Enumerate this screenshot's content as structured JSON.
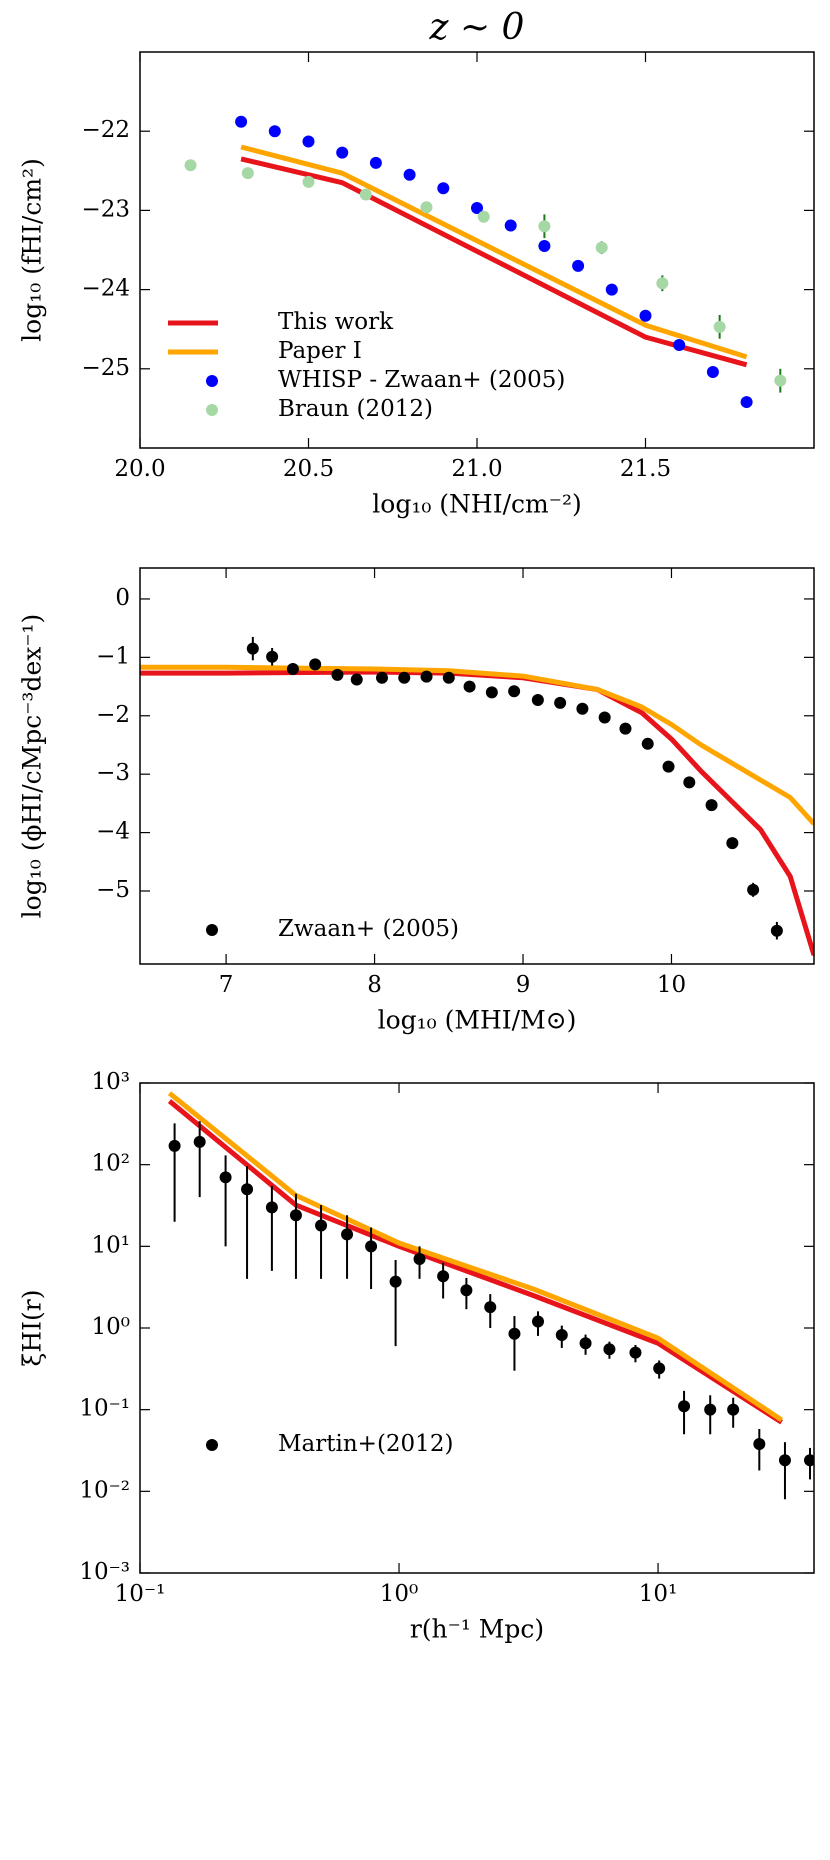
{
  "chart_data": [
    {
      "type": "line",
      "title": "z ∼ 0",
      "xlabel": "log₁₀ (NHI/cm⁻²)",
      "ylabel": "log₁₀ (fHI/cm²)",
      "xlim": [
        20.0,
        22.0
      ],
      "ylim": [
        -26.0,
        -21.0
      ],
      "xticks": [
        {
          "value": 20.0,
          "label": "20.0"
        },
        {
          "value": 20.5,
          "label": "20.5"
        },
        {
          "value": 21.0,
          "label": "21.0"
        },
        {
          "value": 21.5,
          "label": "21.5"
        }
      ],
      "yticks": [
        {
          "value": -22,
          "label": "−22"
        },
        {
          "value": -23,
          "label": "−23"
        },
        {
          "value": -24,
          "label": "−24"
        },
        {
          "value": -25,
          "label": "−25"
        }
      ],
      "legend": "lower left",
      "series": [
        {
          "name": "This work",
          "kind": "line",
          "color": "#e8141c",
          "x": [
            20.3,
            20.6,
            21.5,
            21.8
          ],
          "values": [
            -22.35,
            -22.65,
            -24.6,
            -24.95
          ]
        },
        {
          "name": "Paper I",
          "kind": "line",
          "color": "#ffa500",
          "x": [
            20.3,
            20.6,
            21.5,
            21.8
          ],
          "values": [
            -22.2,
            -22.53,
            -24.45,
            -24.85
          ]
        },
        {
          "name": "WHISP - Zwaan+ (2005)",
          "kind": "scatter",
          "color": "#0000ff",
          "x": [
            20.3,
            20.4,
            20.5,
            20.6,
            20.7,
            20.8,
            20.9,
            21.0,
            21.1,
            21.2,
            21.3,
            21.4,
            21.5,
            21.6,
            21.7,
            21.8
          ],
          "values": [
            -21.88,
            -22.0,
            -22.13,
            -22.27,
            -22.4,
            -22.55,
            -22.72,
            -22.97,
            -23.19,
            -23.45,
            -23.7,
            -24.0,
            -24.33,
            -24.7,
            -25.04,
            -25.42
          ]
        },
        {
          "name": "Braun (2012)",
          "kind": "scatter",
          "color": "#a6d8a6",
          "error_color": "#1a7a1a",
          "x": [
            20.15,
            20.32,
            20.5,
            20.67,
            20.85,
            21.02,
            21.2,
            21.37,
            21.55,
            21.72,
            21.9
          ],
          "values": [
            -22.43,
            -22.53,
            -22.64,
            -22.8,
            -22.96,
            -23.08,
            -23.2,
            -23.47,
            -23.92,
            -24.47,
            -25.15
          ],
          "errors": [
            0.04,
            0.05,
            0.05,
            0.06,
            0.05,
            0.07,
            0.15,
            0.08,
            0.1,
            0.15,
            0.15
          ]
        }
      ]
    },
    {
      "type": "line",
      "xlabel": "log₁₀ (MHI/M⊙)",
      "ylabel": "log₁₀ (ϕHI/cMpc⁻³dex⁻¹)",
      "xlim": [
        6.42,
        10.96
      ],
      "ylim": [
        -6.25,
        0.53
      ],
      "xticks": [
        7,
        8,
        9,
        10
      ],
      "yticks": [
        0,
        {
          "value": -1,
          "label": "−1"
        },
        {
          "value": -2,
          "label": "−2"
        },
        {
          "value": -3,
          "label": "−3"
        },
        {
          "value": -4,
          "label": "−4"
        },
        {
          "value": -5,
          "label": "−5"
        }
      ],
      "legend": "lower left",
      "series": [
        {
          "kind": "line",
          "color": "#e8141c",
          "x": [
            6.42,
            7,
            8,
            8.5,
            9,
            9.5,
            9.8,
            10,
            10.2,
            10.4,
            10.6,
            10.8,
            10.96
          ],
          "values": [
            -1.27,
            -1.27,
            -1.25,
            -1.27,
            -1.35,
            -1.55,
            -1.95,
            -2.4,
            -2.95,
            -3.45,
            -3.95,
            -4.75,
            -6.1
          ]
        },
        {
          "kind": "line",
          "color": "#ffa500",
          "x": [
            6.42,
            7,
            8,
            8.5,
            9,
            9.5,
            9.8,
            10,
            10.2,
            10.5,
            10.8,
            10.96
          ],
          "values": [
            -1.17,
            -1.17,
            -1.2,
            -1.23,
            -1.32,
            -1.55,
            -1.85,
            -2.15,
            -2.5,
            -2.95,
            -3.4,
            -3.85
          ]
        },
        {
          "name": "Zwaan+ (2005)",
          "kind": "scatter",
          "color": "#000000",
          "error_color": "#000000",
          "x": [
            7.18,
            7.31,
            7.45,
            7.6,
            7.75,
            7.88,
            8.05,
            8.2,
            8.35,
            8.5,
            8.64,
            8.79,
            8.94,
            9.1,
            9.25,
            9.4,
            9.55,
            9.69,
            9.84,
            9.98,
            10.12,
            10.27,
            10.41,
            10.55,
            10.71
          ],
          "values": [
            -0.85,
            -0.99,
            -1.2,
            -1.12,
            -1.3,
            -1.38,
            -1.35,
            -1.35,
            -1.33,
            -1.35,
            -1.5,
            -1.6,
            -1.58,
            -1.73,
            -1.78,
            -1.88,
            -2.03,
            -2.22,
            -2.48,
            -2.87,
            -3.14,
            -3.53,
            -4.18,
            -4.98,
            -5.68
          ],
          "errors": [
            0.2,
            0.15,
            0.1,
            0.1,
            0.08,
            0.05,
            0.04,
            0.04,
            0.04,
            0.04,
            0.04,
            0.04,
            0.04,
            0.04,
            0.04,
            0.04,
            0.04,
            0.04,
            0.04,
            0.05,
            0.05,
            0.06,
            0.06,
            0.12,
            0.15
          ]
        }
      ]
    },
    {
      "type": "line",
      "xlabel": "r(h⁻¹ Mpc)",
      "ylabel": "ξHI(r)",
      "xscale": "log",
      "yscale": "log",
      "xlim": [
        0.1,
        40
      ],
      "ylim": [
        0.001,
        1000
      ],
      "xticks": [
        {
          "value": 0.1,
          "label": "10⁻¹"
        },
        {
          "value": 1,
          "label": "10⁰"
        },
        {
          "value": 10,
          "label": "10¹"
        }
      ],
      "yticks": [
        {
          "value": 1000,
          "label": "10³"
        },
        {
          "value": 100,
          "label": "10²"
        },
        {
          "value": 10,
          "label": "10¹"
        },
        {
          "value": 1,
          "label": "10⁰"
        },
        {
          "value": 0.1,
          "label": "10⁻¹"
        },
        {
          "value": 0.01,
          "label": "10⁻²"
        },
        {
          "value": 0.001,
          "label": "10⁻³"
        }
      ],
      "legend": "lower left",
      "series": [
        {
          "kind": "line",
          "color": "#e8141c",
          "x": [
            0.13,
            0.4,
            1,
            3.3,
            10,
            30
          ],
          "values": [
            600,
            32,
            10,
            2.5,
            0.65,
            0.07
          ]
        },
        {
          "kind": "line",
          "color": "#ffa500",
          "x": [
            0.13,
            0.4,
            1,
            3.3,
            10,
            30
          ],
          "values": [
            750,
            42,
            11,
            3.0,
            0.75,
            0.075
          ]
        },
        {
          "name": "Martin+(2012)",
          "kind": "scatter",
          "color": "#000000",
          "error_color": "#000000",
          "x": [
            0.136,
            0.17,
            0.214,
            0.259,
            0.323,
            0.4,
            0.5,
            0.63,
            0.78,
            0.97,
            1.2,
            1.48,
            1.82,
            2.25,
            2.79,
            3.44,
            4.25,
            5.25,
            6.49,
            8.18,
            10.1,
            12.6,
            15.9,
            19.5,
            24.6,
            30.9,
            38.6
          ],
          "values": [
            170,
            190,
            70,
            50,
            30,
            24,
            18,
            14,
            10,
            3.7,
            7,
            4.3,
            2.9,
            1.8,
            0.85,
            1.2,
            0.82,
            0.65,
            0.55,
            0.5,
            0.32,
            0.11,
            0.1,
            0.1,
            0.038,
            0.024,
            0.024
          ],
          "errors": [
            150,
            150,
            60,
            46,
            25,
            20,
            14,
            10,
            7,
            3.1,
            3,
            2,
            1.2,
            0.8,
            0.55,
            0.4,
            0.25,
            0.18,
            0.13,
            0.12,
            0.08,
            0.06,
            0.05,
            0.04,
            0.02,
            0.016,
            0.01
          ]
        }
      ]
    }
  ]
}
